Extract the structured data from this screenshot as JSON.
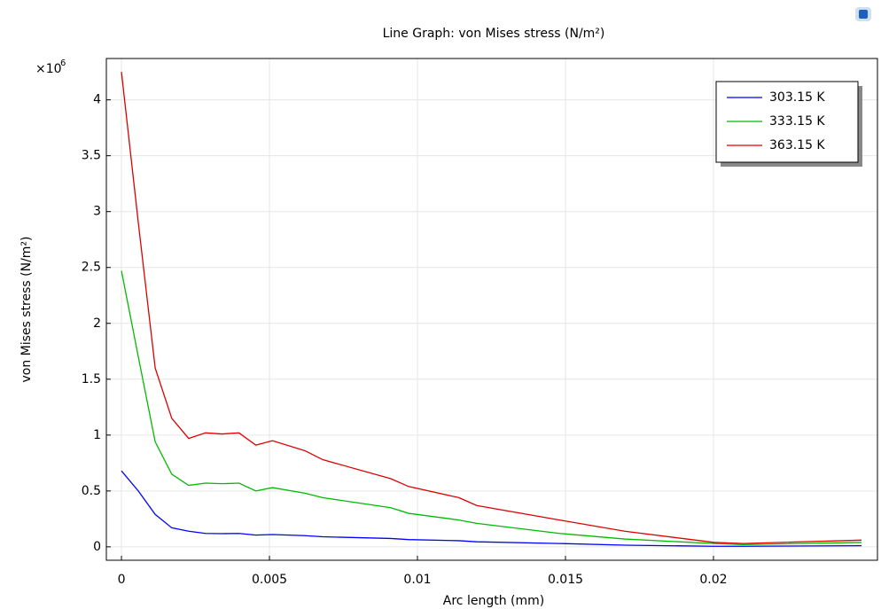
{
  "chart_data": {
    "type": "line",
    "title": "Line Graph: von Mises stress (N/m²)",
    "x_label": "Arc length (mm)",
    "y_label": "von Mises stress (N/m²)",
    "y_multiplier": {
      "base": "×10",
      "exponent": "6"
    },
    "x": [
      0,
      0.00057,
      0.00114,
      0.0017,
      0.00227,
      0.00284,
      0.0034,
      0.00397,
      0.00454,
      0.0051,
      0.0062,
      0.0068,
      0.0091,
      0.0097,
      0.0114,
      0.012,
      0.0148,
      0.017,
      0.02,
      0.021,
      0.025
    ],
    "series": [
      {
        "name": "303.15 K",
        "color": "#0000ff",
        "values": [
          0.68,
          0.5,
          0.29,
          0.17,
          0.14,
          0.12,
          0.118,
          0.12,
          0.105,
          0.11,
          0.1,
          0.09,
          0.075,
          0.065,
          0.055,
          0.045,
          0.03,
          0.015,
          0.005,
          0.005,
          0.01
        ]
      },
      {
        "name": "333.15 K",
        "color": "#00bb00",
        "values": [
          2.47,
          1.7,
          0.94,
          0.65,
          0.55,
          0.57,
          0.565,
          0.57,
          0.5,
          0.53,
          0.48,
          0.44,
          0.35,
          0.3,
          0.24,
          0.21,
          0.12,
          0.07,
          0.03,
          0.02,
          0.04
        ]
      },
      {
        "name": "363.15 K",
        "color": "#dd0000",
        "values": [
          4.25,
          2.9,
          1.6,
          1.15,
          0.97,
          1.02,
          1.01,
          1.02,
          0.91,
          0.95,
          0.86,
          0.78,
          0.61,
          0.54,
          0.44,
          0.37,
          0.24,
          0.14,
          0.04,
          0.03,
          0.06
        ]
      }
    ],
    "xlim": [
      -0.00051,
      0.02554
    ],
    "ylim": [
      -0.12,
      4.37
    ],
    "xticks": [
      0,
      0.005,
      0.01,
      0.015,
      0.02
    ],
    "yticks": [
      0,
      0.5,
      1,
      1.5,
      2,
      2.5,
      3,
      3.5,
      4
    ],
    "grid": true,
    "legend": "upper right"
  }
}
